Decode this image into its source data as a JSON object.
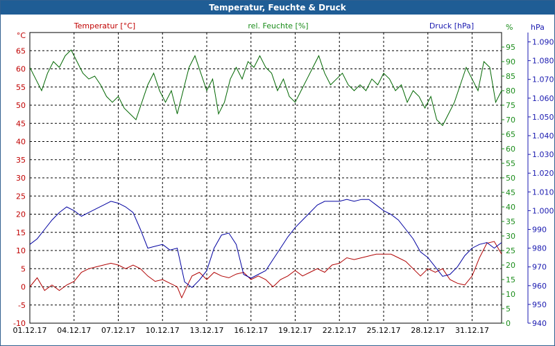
{
  "chart_data": {
    "type": "line",
    "title": "Temperatur, Feuchte & Druck",
    "x_ticks": [
      "01.12.17",
      "04.12.17",
      "07.12.17",
      "10.12.17",
      "13.12.17",
      "16.12.17",
      "19.12.17",
      "22.12.17",
      "25.12.17",
      "28.12.17",
      "31.12.17"
    ],
    "x_range": [
      "01.12.17",
      "01.01.18"
    ],
    "grid": true,
    "axes": {
      "temperature": {
        "unit": "°C",
        "ticks": [
          -10,
          -5,
          0,
          5,
          10,
          15,
          20,
          25,
          30,
          35,
          40,
          45,
          50,
          55,
          60,
          65
        ],
        "range": [
          -10,
          70
        ],
        "color": "#c00000",
        "position": "left"
      },
      "humidity": {
        "unit": "%",
        "ticks": [
          0,
          5,
          10,
          15,
          20,
          25,
          30,
          35,
          40,
          45,
          50,
          55,
          60,
          65,
          70,
          75,
          80,
          85,
          90,
          95
        ],
        "range": [
          0,
          100
        ],
        "color": "#1a8c1a",
        "position": "right-inner"
      },
      "pressure": {
        "unit": "hPa",
        "ticks": [
          940,
          950,
          960,
          970,
          980,
          990,
          1000,
          1010,
          1020,
          1030,
          1040,
          1050,
          1060,
          1070,
          1080,
          1090
        ],
        "range": [
          940,
          1095
        ],
        "color": "#1a1ab0",
        "position": "right-outer"
      }
    },
    "series": [
      {
        "name": "Temperatur [°C]",
        "axis": "temperature",
        "color": "#b00000",
        "points": [
          [
            0,
            0
          ],
          [
            0.5,
            2.5
          ],
          [
            1,
            -1
          ],
          [
            1.5,
            0.5
          ],
          [
            2,
            -1
          ],
          [
            2.5,
            0.5
          ],
          [
            3,
            1.5
          ],
          [
            3.5,
            4
          ],
          [
            4,
            5
          ],
          [
            4.5,
            5.5
          ],
          [
            5,
            6
          ],
          [
            5.5,
            6.5
          ],
          [
            6,
            6
          ],
          [
            6.5,
            5
          ],
          [
            7,
            6
          ],
          [
            7.5,
            5
          ],
          [
            8,
            3
          ],
          [
            8.5,
            1.5
          ],
          [
            9,
            2
          ],
          [
            9.5,
            1
          ],
          [
            10,
            0
          ],
          [
            10.3,
            -3
          ],
          [
            10.7,
            0.5
          ],
          [
            11,
            3
          ],
          [
            11.5,
            4
          ],
          [
            12,
            2
          ],
          [
            12.5,
            4
          ],
          [
            13,
            3
          ],
          [
            13.5,
            2.5
          ],
          [
            14,
            3.5
          ],
          [
            14.5,
            4
          ],
          [
            15,
            2
          ],
          [
            15.5,
            3
          ],
          [
            16,
            2
          ],
          [
            16.5,
            0
          ],
          [
            17,
            2
          ],
          [
            17.5,
            3
          ],
          [
            18,
            4.5
          ],
          [
            18.5,
            3
          ],
          [
            19,
            4
          ],
          [
            19.5,
            5
          ],
          [
            20,
            4
          ],
          [
            20.5,
            6
          ],
          [
            21,
            6.5
          ],
          [
            21.5,
            8
          ],
          [
            22,
            7.5
          ],
          [
            22.5,
            8
          ],
          [
            23,
            8.5
          ],
          [
            23.5,
            9
          ],
          [
            24,
            9
          ],
          [
            24.5,
            9
          ],
          [
            25,
            8
          ],
          [
            25.5,
            7
          ],
          [
            26,
            5
          ],
          [
            26.5,
            3
          ],
          [
            27,
            5
          ],
          [
            27.5,
            4
          ],
          [
            28,
            5
          ],
          [
            28.5,
            2
          ],
          [
            29,
            1
          ],
          [
            29.5,
            0.5
          ],
          [
            30,
            3
          ],
          [
            30.5,
            8
          ],
          [
            31,
            12
          ],
          [
            31.5,
            12.5
          ],
          [
            32,
            9
          ]
        ]
      },
      {
        "name": "rel. Feuchte [%]",
        "axis": "humidity",
        "color": "#006600",
        "points": [
          [
            0,
            88
          ],
          [
            0.4,
            84
          ],
          [
            0.8,
            80
          ],
          [
            1.2,
            86
          ],
          [
            1.6,
            90
          ],
          [
            2,
            88
          ],
          [
            2.4,
            92
          ],
          [
            2.8,
            94
          ],
          [
            3.2,
            90
          ],
          [
            3.6,
            86
          ],
          [
            4,
            84
          ],
          [
            4.4,
            85
          ],
          [
            4.8,
            82
          ],
          [
            5.2,
            78
          ],
          [
            5.6,
            76
          ],
          [
            6,
            78
          ],
          [
            6.4,
            74
          ],
          [
            6.8,
            72
          ],
          [
            7.2,
            70
          ],
          [
            7.6,
            76
          ],
          [
            8,
            82
          ],
          [
            8.4,
            86
          ],
          [
            8.8,
            80
          ],
          [
            9.2,
            76
          ],
          [
            9.6,
            80
          ],
          [
            10,
            72
          ],
          [
            10.4,
            80
          ],
          [
            10.8,
            88
          ],
          [
            11.2,
            92
          ],
          [
            11.6,
            86
          ],
          [
            12,
            80
          ],
          [
            12.4,
            84
          ],
          [
            12.8,
            72
          ],
          [
            13.2,
            76
          ],
          [
            13.6,
            84
          ],
          [
            14,
            88
          ],
          [
            14.4,
            84
          ],
          [
            14.8,
            90
          ],
          [
            15.2,
            88
          ],
          [
            15.6,
            92
          ],
          [
            16,
            88
          ],
          [
            16.4,
            86
          ],
          [
            16.8,
            80
          ],
          [
            17.2,
            84
          ],
          [
            17.6,
            78
          ],
          [
            18,
            76
          ],
          [
            18.4,
            80
          ],
          [
            18.8,
            84
          ],
          [
            19.2,
            88
          ],
          [
            19.6,
            92
          ],
          [
            20,
            86
          ],
          [
            20.4,
            82
          ],
          [
            20.8,
            84
          ],
          [
            21.2,
            86
          ],
          [
            21.6,
            82
          ],
          [
            22,
            80
          ],
          [
            22.4,
            82
          ],
          [
            22.8,
            80
          ],
          [
            23.2,
            84
          ],
          [
            23.6,
            82
          ],
          [
            24,
            86
          ],
          [
            24.4,
            84
          ],
          [
            24.8,
            80
          ],
          [
            25.2,
            82
          ],
          [
            25.6,
            76
          ],
          [
            26,
            80
          ],
          [
            26.4,
            78
          ],
          [
            26.8,
            74
          ],
          [
            27.2,
            78
          ],
          [
            27.6,
            70
          ],
          [
            28,
            68
          ],
          [
            28.4,
            72
          ],
          [
            28.8,
            76
          ],
          [
            29.2,
            82
          ],
          [
            29.6,
            88
          ],
          [
            30,
            84
          ],
          [
            30.4,
            80
          ],
          [
            30.8,
            90
          ],
          [
            31.2,
            88
          ],
          [
            31.6,
            76
          ],
          [
            32,
            80
          ]
        ]
      },
      {
        "name": "Druck [hPa]",
        "axis": "pressure",
        "color": "#0000a0",
        "points": [
          [
            0,
            982
          ],
          [
            0.5,
            985
          ],
          [
            1,
            990
          ],
          [
            1.5,
            995
          ],
          [
            2,
            999
          ],
          [
            2.5,
            1002
          ],
          [
            3,
            1000
          ],
          [
            3.5,
            997
          ],
          [
            4,
            999
          ],
          [
            4.5,
            1001
          ],
          [
            5,
            1003
          ],
          [
            5.5,
            1005
          ],
          [
            6,
            1004
          ],
          [
            6.5,
            1002
          ],
          [
            7,
            999
          ],
          [
            7.5,
            990
          ],
          [
            8,
            980
          ],
          [
            8.5,
            981
          ],
          [
            9,
            982
          ],
          [
            9.5,
            979
          ],
          [
            10,
            980
          ],
          [
            10.5,
            962
          ],
          [
            11,
            959
          ],
          [
            11.5,
            963
          ],
          [
            12,
            968
          ],
          [
            12.5,
            980
          ],
          [
            13,
            987
          ],
          [
            13.5,
            988
          ],
          [
            14,
            982
          ],
          [
            14.5,
            966
          ],
          [
            15,
            964
          ],
          [
            15.5,
            966
          ],
          [
            16,
            968
          ],
          [
            16.5,
            974
          ],
          [
            17,
            980
          ],
          [
            17.5,
            986
          ],
          [
            18,
            991
          ],
          [
            18.5,
            995
          ],
          [
            19,
            999
          ],
          [
            19.5,
            1003
          ],
          [
            20,
            1005
          ],
          [
            20.5,
            1005
          ],
          [
            21,
            1005
          ],
          [
            21.5,
            1006
          ],
          [
            22,
            1005
          ],
          [
            22.5,
            1006
          ],
          [
            23,
            1006
          ],
          [
            23.5,
            1003
          ],
          [
            24,
            1000
          ],
          [
            24.5,
            998
          ],
          [
            25,
            995
          ],
          [
            25.5,
            990
          ],
          [
            26,
            985
          ],
          [
            26.5,
            978
          ],
          [
            27,
            975
          ],
          [
            27.5,
            970
          ],
          [
            28,
            965
          ],
          [
            28.5,
            966
          ],
          [
            29,
            970
          ],
          [
            29.5,
            976
          ],
          [
            30,
            980
          ],
          [
            30.5,
            982
          ],
          [
            31,
            983
          ],
          [
            31.5,
            980
          ],
          [
            32,
            983
          ]
        ]
      }
    ]
  }
}
